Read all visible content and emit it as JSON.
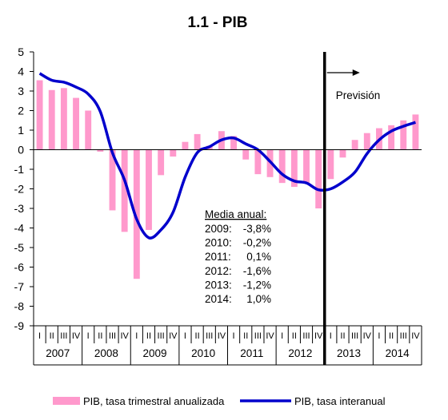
{
  "chart_data": {
    "type": "bar+line",
    "title": "1.1 - PIB",
    "ylim": [
      -9,
      5
    ],
    "yticks": [
      "5",
      "4",
      "3",
      "2",
      "1",
      "0",
      "-1",
      "-2",
      "-3",
      "-4",
      "-5",
      "-6",
      "-7",
      "-8",
      "-9"
    ],
    "quarter_labels": [
      "I",
      "II",
      "III",
      "IV"
    ],
    "years": [
      "2007",
      "2008",
      "2009",
      "2010",
      "2011",
      "2012",
      "2013",
      "2014"
    ],
    "series": [
      {
        "name": "PIB, tasa trimestral anualizada",
        "type": "bar",
        "color": "#ff99cc",
        "values": [
          3.55,
          3.05,
          3.15,
          2.65,
          2.0,
          -0.1,
          -3.1,
          -4.2,
          -6.6,
          -4.1,
          -1.3,
          -0.35,
          0.4,
          0.8,
          0.2,
          0.95,
          0.7,
          -0.5,
          -1.25,
          -1.4,
          -1.7,
          -1.9,
          -1.7,
          -3.0,
          -1.5,
          -0.4,
          0.5,
          0.85,
          1.1,
          1.25,
          1.5,
          1.8
        ]
      },
      {
        "name": "PIB, tasa interanual",
        "type": "line",
        "color": "#0000cc",
        "values": [
          3.9,
          3.55,
          3.45,
          3.2,
          2.85,
          1.95,
          -0.15,
          -1.55,
          -3.55,
          -4.5,
          -4.1,
          -3.2,
          -1.4,
          -0.15,
          0.15,
          0.5,
          0.6,
          0.3,
          0.0,
          -0.6,
          -1.25,
          -1.6,
          -1.7,
          -2.05,
          -2.0,
          -1.65,
          -1.15,
          -0.2,
          0.5,
          0.95,
          1.2,
          1.4
        ]
      }
    ],
    "forecast": {
      "label": "Previsión",
      "start_after_quarter_index": 24
    },
    "annotation": {
      "heading": "Media anual:",
      "rows": [
        {
          "year": "2009:",
          "value": "-3,8%"
        },
        {
          "year": "2010:",
          "value": "-0,2%"
        },
        {
          "year": "2011:",
          "value": "0,1%"
        },
        {
          "year": "2012:",
          "value": "-1,6%"
        },
        {
          "year": "2013:",
          "value": "-1,2%"
        },
        {
          "year": "2014:",
          "value": "1,0%"
        }
      ]
    },
    "legend": {
      "position": "bottom",
      "bar_label": "PIB, tasa trimestral anualizada",
      "line_label": "PIB, tasa interanual"
    }
  }
}
